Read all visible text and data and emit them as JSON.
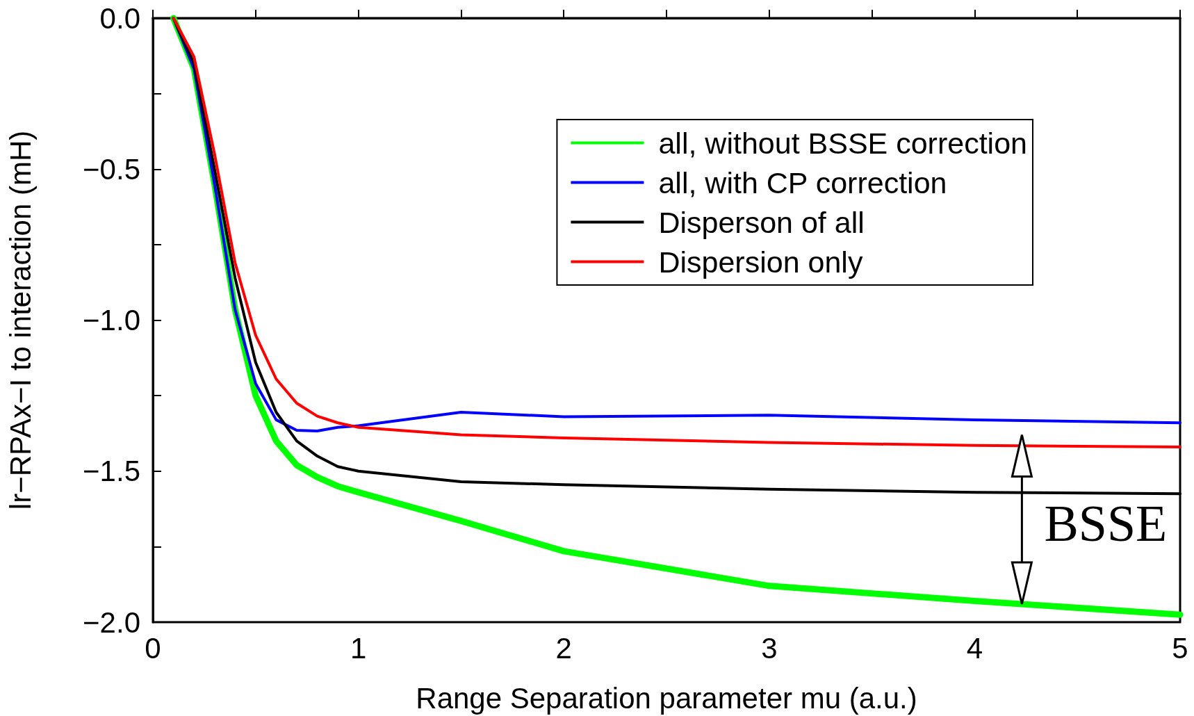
{
  "chart_data": {
    "type": "line",
    "xlabel": "Range Separation parameter mu (a.u.)",
    "ylabel": "lr−RPAx−I to interaction (mH)",
    "x": [
      0.1,
      0.2,
      0.3,
      0.4,
      0.5,
      0.6,
      0.7,
      0.8,
      0.9,
      1.0,
      1.5,
      2,
      3,
      4,
      5
    ],
    "series": [
      {
        "name": "all, without BSSE correction",
        "color": "#00ff00",
        "values": [
          0,
          -0.168,
          -0.55,
          -0.965,
          -1.25,
          -1.4,
          -1.48,
          -1.52,
          -1.55,
          -1.57,
          -1.665,
          -1.765,
          -1.88,
          -1.93,
          -1.975
        ]
      },
      {
        "name": "all, with CP correction",
        "color": "#0000ff",
        "values": [
          0,
          -0.168,
          -0.55,
          -0.965,
          -1.21,
          -1.33,
          -1.365,
          -1.367,
          -1.355,
          -1.35,
          -1.305,
          -1.32,
          -1.315,
          -1.33,
          -1.34
        ]
      },
      {
        "name": "Disperson of all",
        "color": "#000000",
        "values": [
          0,
          -0.15,
          -0.5,
          -0.86,
          -1.14,
          -1.305,
          -1.4,
          -1.45,
          -1.485,
          -1.5,
          -1.535,
          -1.545,
          -1.56,
          -1.57,
          -1.575
        ]
      },
      {
        "name": "Dispersion only",
        "color": "#ff0000",
        "values": [
          0,
          -0.128,
          -0.45,
          -0.81,
          -1.05,
          -1.195,
          -1.275,
          -1.318,
          -1.34,
          -1.355,
          -1.38,
          -1.39,
          -1.405,
          -1.415,
          -1.42
        ]
      }
    ],
    "xlim": [
      0,
      5
    ],
    "xticks": [
      0,
      {
        "value": 0.5,
        "label": null
      },
      1,
      {
        "value": 1.5,
        "label": null
      },
      2,
      {
        "value": 2.5,
        "label": null
      },
      3,
      {
        "value": 3.5,
        "label": null
      },
      4,
      {
        "value": 4.5,
        "label": null
      },
      5
    ],
    "ylim": [
      -2,
      0
    ],
    "yticks": [
      {
        "value": -2,
        "label": "−2.0"
      },
      {
        "value": -1.75,
        "label": null
      },
      {
        "value": -1.5,
        "label": "−1.5"
      },
      {
        "value": -1.25,
        "label": null
      },
      {
        "value": -1,
        "label": "−1.0"
      },
      {
        "value": -0.75,
        "label": null
      },
      {
        "value": -0.5,
        "label": "−0.5"
      },
      {
        "value": -0.25,
        "label": null
      },
      {
        "value": 0,
        "label": "0.0"
      }
    ],
    "annotations": [
      "BSSE"
    ],
    "legend": "top right",
    "grid": false,
    "marker": "none",
    "line_style": "solid"
  }
}
